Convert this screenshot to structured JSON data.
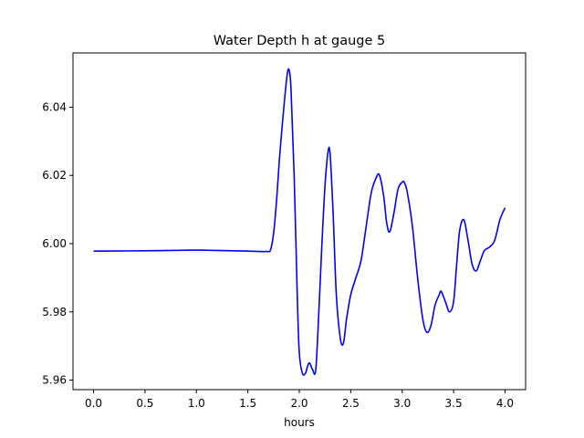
{
  "chart_data": {
    "type": "line",
    "title": "Water Depth h at gauge 5",
    "xlabel": "hours",
    "ylabel": "",
    "xlim": [
      -0.2,
      4.2
    ],
    "ylim": [
      5.9572,
      6.0559
    ],
    "xticks": [
      0.0,
      0.5,
      1.0,
      1.5,
      2.0,
      2.5,
      3.0,
      3.5,
      4.0
    ],
    "xtick_labels": [
      "0.0",
      "0.5",
      "1.0",
      "1.5",
      "2.0",
      "2.5",
      "3.0",
      "3.5",
      "4.0"
    ],
    "yticks": [
      5.96,
      5.98,
      6.0,
      6.02,
      6.04
    ],
    "ytick_labels": [
      "5.96",
      "5.98",
      "6.00",
      "6.02",
      "6.04"
    ],
    "grid": false,
    "colors": {
      "series": "#0000ff",
      "axes": "#000000",
      "background": "#ffffff"
    },
    "series": [
      {
        "color": "#0000ff",
        "x": [
          0.0,
          0.5,
          1.0,
          1.2,
          1.5,
          1.68,
          1.72,
          1.75,
          1.78,
          1.81,
          1.85,
          1.88,
          1.9,
          1.92,
          1.95,
          1.98,
          2.0,
          2.03,
          2.06,
          2.08,
          2.1,
          2.13,
          2.16,
          2.19,
          2.22,
          2.25,
          2.28,
          2.3,
          2.33,
          2.36,
          2.4,
          2.43,
          2.46,
          2.5,
          2.55,
          2.6,
          2.65,
          2.7,
          2.75,
          2.78,
          2.82,
          2.85,
          2.88,
          2.92,
          2.96,
          3.0,
          3.02,
          3.05,
          3.1,
          3.15,
          3.2,
          3.24,
          3.28,
          3.32,
          3.36,
          3.38,
          3.42,
          3.46,
          3.5,
          3.53,
          3.56,
          3.6,
          3.64,
          3.68,
          3.72,
          3.76,
          3.8,
          3.85,
          3.9,
          3.95,
          4.0
        ],
        "y": [
          5.9978,
          5.9979,
          5.9981,
          5.998,
          5.9978,
          5.9977,
          5.9982,
          6.003,
          6.013,
          6.026,
          6.04,
          6.049,
          6.051,
          6.045,
          6.02,
          5.985,
          5.968,
          5.962,
          5.962,
          5.964,
          5.965,
          5.963,
          5.963,
          5.98,
          6.0,
          6.017,
          6.027,
          6.026,
          6.008,
          5.985,
          5.972,
          5.971,
          5.978,
          5.985,
          5.99,
          5.995,
          6.005,
          6.015,
          6.0195,
          6.02,
          6.014,
          6.006,
          6.0035,
          6.009,
          6.016,
          6.018,
          6.018,
          6.015,
          6.005,
          5.99,
          5.978,
          5.974,
          5.976,
          5.982,
          5.985,
          5.986,
          5.983,
          5.98,
          5.983,
          5.994,
          6.004,
          6.007,
          6.001,
          5.994,
          5.992,
          5.995,
          5.998,
          5.999,
          6.001,
          6.007,
          6.0105
        ]
      }
    ]
  }
}
